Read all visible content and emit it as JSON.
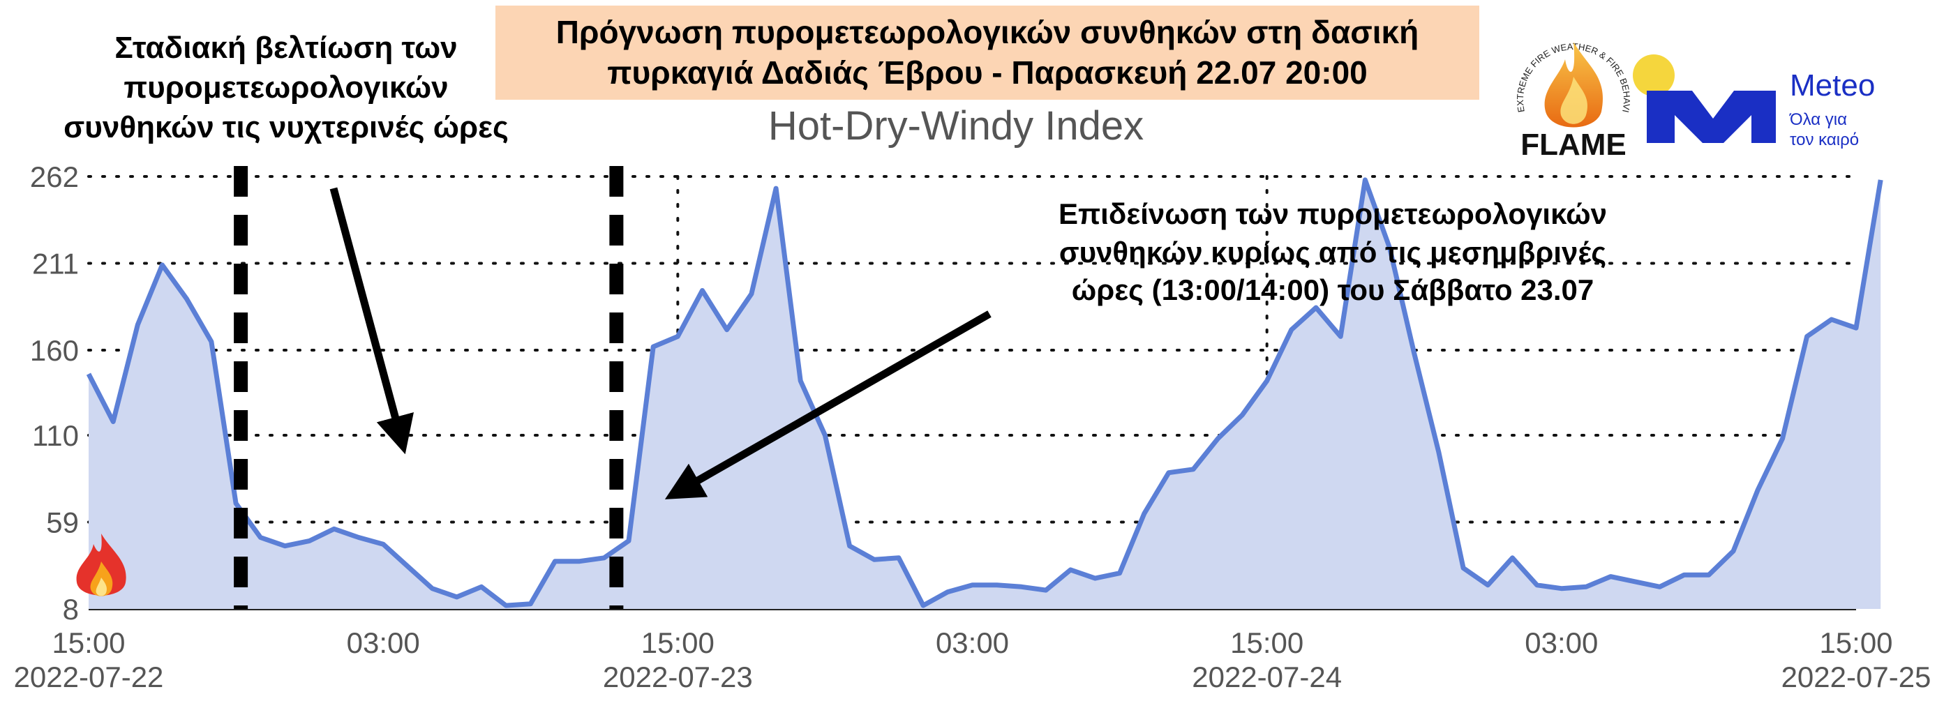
{
  "banner": {
    "line1": "Πρόγνωση πυρομετεωρολογικών συνθηκών στη δασική",
    "line2": "πυρκαγιά Δαδιάς Έβρου - Παρασκευή 22.07 20:00"
  },
  "annotations": {
    "left": [
      "Σταδιακή βελτίωση των",
      "πυρομετεωρολογικών",
      "συνθηκών τις νυχτερινές ώρες"
    ],
    "right": [
      "Επιδείνωση των πυρομετεωρολογικών",
      "συνθηκών κυρίως από τις μεσημβρινές",
      "ώρες (13:00/14:00) του Σάββατο 23.07"
    ]
  },
  "logos": {
    "flame_text": "FLAME",
    "flame_ring": "EXTREME FIRE WEATHER & FIRE BEHAVIOUR",
    "meteo_name": "Meteo",
    "meteo_tagline": [
      "Όλα για",
      "τον καιρό"
    ],
    "icons": [
      "flame-logo-icon",
      "meteo-logo-icon",
      "fire-icon"
    ]
  },
  "colors": {
    "line": "#5b7fd6",
    "fill": "#cfd8f1",
    "banner_bg": "#fcd5b4",
    "meteo_blue": "#1a2fc4",
    "meteo_sun": "#f5d63d",
    "grid": "#111111"
  },
  "chart_data": {
    "type": "area",
    "title": "Hot-Dry-Windy Index",
    "xlabel": "",
    "ylabel": "",
    "grid": true,
    "y_ticks": [
      8,
      59,
      110,
      160,
      211,
      262
    ],
    "ylim": [
      8,
      262
    ],
    "x_ticks": [
      {
        "hours": 0,
        "time": "15:00",
        "date": "2022-07-22"
      },
      {
        "hours": 12,
        "time": "03:00",
        "date": ""
      },
      {
        "hours": 24,
        "time": "15:00",
        "date": "2022-07-23"
      },
      {
        "hours": 36,
        "time": "03:00",
        "date": ""
      },
      {
        "hours": 48,
        "time": "15:00",
        "date": "2022-07-24"
      },
      {
        "hours": 60,
        "time": "03:00",
        "date": ""
      },
      {
        "hours": 72,
        "time": "15:00",
        "date": "2022-07-25"
      }
    ],
    "x_unit": "hour offset from 2022-07-22 15:00",
    "xlim": [
      0,
      72
    ],
    "forecast_window_markers": [
      6.2,
      21.5
    ],
    "series": [
      {
        "values": [
          146,
          118,
          175,
          210,
          190,
          165,
          70,
          50,
          45,
          48,
          55,
          50,
          46,
          33,
          20,
          15,
          21,
          10,
          11,
          36,
          36,
          38,
          48,
          162,
          168,
          195,
          172,
          193,
          255,
          142,
          110,
          45,
          37,
          38,
          10,
          18,
          22,
          22,
          21,
          19,
          31,
          26,
          29,
          64,
          88,
          90,
          108,
          122,
          142,
          172,
          185,
          168,
          260,
          220,
          158,
          100,
          32,
          22,
          38,
          22,
          20,
          21,
          27,
          24,
          21,
          28,
          28,
          42,
          78,
          108,
          168,
          178,
          173,
          260
        ]
      }
    ]
  }
}
